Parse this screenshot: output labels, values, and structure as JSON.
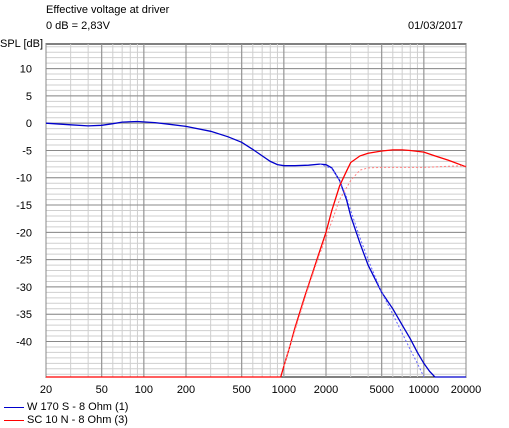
{
  "header": {
    "title": "Effective voltage at driver",
    "reference": "0 dB = 2,83V",
    "date": "01/03/2017"
  },
  "chart_data": {
    "type": "line",
    "ylabel": "SPL [dB]",
    "xscale": "log",
    "xlim": [
      20,
      20000
    ],
    "ylim": [
      -46.5,
      14.5
    ],
    "grid": true,
    "x_ticks": [
      20,
      50,
      100,
      200,
      500,
      1000,
      2000,
      5000,
      10000,
      20000
    ],
    "y_ticks": [
      10,
      5,
      0,
      -5,
      -10,
      -15,
      -20,
      -25,
      -30,
      -35,
      -40
    ],
    "legend_position": "bottom-left",
    "series": [
      {
        "name": "W 170 S - 8 Ohm (1)",
        "color": "#0000cc",
        "style": "solid",
        "points": [
          [
            20,
            0
          ],
          [
            30,
            -0.3
          ],
          [
            40,
            -0.5
          ],
          [
            50,
            -0.4
          ],
          [
            60,
            -0.1
          ],
          [
            70,
            0.2
          ],
          [
            90,
            0.3
          ],
          [
            120,
            0.1
          ],
          [
            150,
            -0.2
          ],
          [
            200,
            -0.6
          ],
          [
            300,
            -1.5
          ],
          [
            400,
            -2.5
          ],
          [
            500,
            -3.5
          ],
          [
            600,
            -4.8
          ],
          [
            700,
            -6.0
          ],
          [
            800,
            -7.0
          ],
          [
            900,
            -7.6
          ],
          [
            1000,
            -7.8
          ],
          [
            1200,
            -7.8
          ],
          [
            1500,
            -7.7
          ],
          [
            1800,
            -7.5
          ],
          [
            2000,
            -7.6
          ],
          [
            2200,
            -8.2
          ],
          [
            2500,
            -10.5
          ],
          [
            2800,
            -14
          ],
          [
            3000,
            -17
          ],
          [
            3500,
            -22
          ],
          [
            4000,
            -26
          ],
          [
            5000,
            -31
          ],
          [
            6000,
            -34
          ],
          [
            7000,
            -37
          ],
          [
            8000,
            -39.5
          ],
          [
            9000,
            -42
          ],
          [
            10000,
            -44
          ],
          [
            11000,
            -45.5
          ],
          [
            12000,
            -46.5
          ],
          [
            20000,
            -46.5
          ]
        ]
      },
      {
        "name": "",
        "color": "#6666ff",
        "style": "dashed",
        "points": [
          [
            1800,
            -7.5
          ],
          [
            2200,
            -8.3
          ],
          [
            2500,
            -10.5
          ],
          [
            2800,
            -13.5
          ],
          [
            3000,
            -16
          ],
          [
            3500,
            -21
          ],
          [
            4000,
            -25
          ],
          [
            5000,
            -31
          ],
          [
            6000,
            -35
          ],
          [
            7000,
            -38.5
          ],
          [
            8000,
            -41.5
          ],
          [
            9000,
            -44
          ],
          [
            10000,
            -46.5
          ]
        ]
      },
      {
        "name": "SC 10 N - 8 Ohm (3)",
        "color": "#ff0000",
        "style": "solid",
        "points": [
          [
            20,
            -46.5
          ],
          [
            800,
            -46.5
          ],
          [
            950,
            -46.5
          ],
          [
            1000,
            -44.5
          ],
          [
            1100,
            -41
          ],
          [
            1200,
            -37.5
          ],
          [
            1400,
            -32
          ],
          [
            1600,
            -27.5
          ],
          [
            1800,
            -23.5
          ],
          [
            2000,
            -20
          ],
          [
            2200,
            -16
          ],
          [
            2500,
            -11.5
          ],
          [
            2800,
            -8.8
          ],
          [
            3000,
            -7.2
          ],
          [
            3500,
            -6
          ],
          [
            4000,
            -5.5
          ],
          [
            5000,
            -5.1
          ],
          [
            6000,
            -4.9
          ],
          [
            7000,
            -4.9
          ],
          [
            8000,
            -5
          ],
          [
            10000,
            -5.3
          ],
          [
            12000,
            -6
          ],
          [
            15000,
            -6.8
          ],
          [
            20000,
            -8
          ]
        ]
      },
      {
        "name": "",
        "color": "#ff8080",
        "style": "dashed",
        "points": [
          [
            1000,
            -44.5
          ],
          [
            1200,
            -38
          ],
          [
            1500,
            -30
          ],
          [
            1800,
            -24
          ],
          [
            2000,
            -21
          ],
          [
            2200,
            -18
          ],
          [
            2500,
            -14
          ],
          [
            3000,
            -10.5
          ],
          [
            3500,
            -8.6
          ],
          [
            4000,
            -8.2
          ],
          [
            5000,
            -8.1
          ],
          [
            10000,
            -8.1
          ],
          [
            15000,
            -7.9
          ],
          [
            20000,
            -7.8
          ]
        ]
      }
    ]
  }
}
